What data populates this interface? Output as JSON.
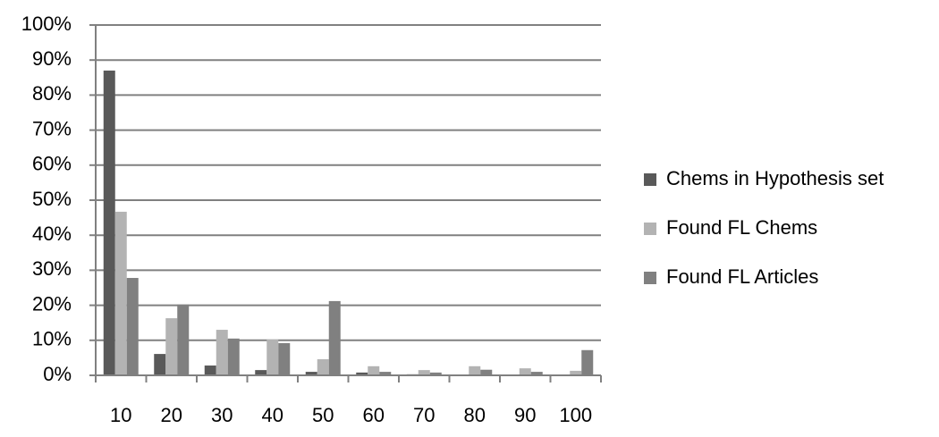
{
  "chart_data": {
    "type": "bar",
    "categories": [
      "10",
      "20",
      "30",
      "40",
      "50",
      "60",
      "70",
      "80",
      "90",
      "100"
    ],
    "series": [
      {
        "name": "Chems in Hypothesis set",
        "color": "#595959",
        "values": [
          87,
          6.1,
          2.8,
          1.5,
          1,
          0.8,
          0.3,
          0.2,
          0.1,
          0.1
        ]
      },
      {
        "name": "Found FL Chems",
        "color": "#b3b3b3",
        "values": [
          46.7,
          16.3,
          13,
          10.2,
          4.6,
          2.6,
          1.5,
          2.6,
          2,
          1.3
        ]
      },
      {
        "name": "Found FL Articles",
        "color": "#808080",
        "values": [
          27.8,
          20.2,
          10.5,
          9.2,
          21.2,
          1,
          0.8,
          1.6,
          1,
          7.2
        ]
      }
    ],
    "ylim": [
      0,
      100
    ],
    "yticks": [
      {
        "value": 0,
        "label": "0%"
      },
      {
        "value": 10,
        "label": "10%"
      },
      {
        "value": 20,
        "label": "20%"
      },
      {
        "value": 30,
        "label": "30%"
      },
      {
        "value": 40,
        "label": "40%"
      },
      {
        "value": 50,
        "label": "50%"
      },
      {
        "value": 60,
        "label": "60%"
      },
      {
        "value": 70,
        "label": "70%"
      },
      {
        "value": 80,
        "label": "80%"
      },
      {
        "value": 90,
        "label": "90%"
      },
      {
        "value": 100,
        "label": "100%"
      }
    ],
    "grid": true,
    "legend": "right"
  }
}
